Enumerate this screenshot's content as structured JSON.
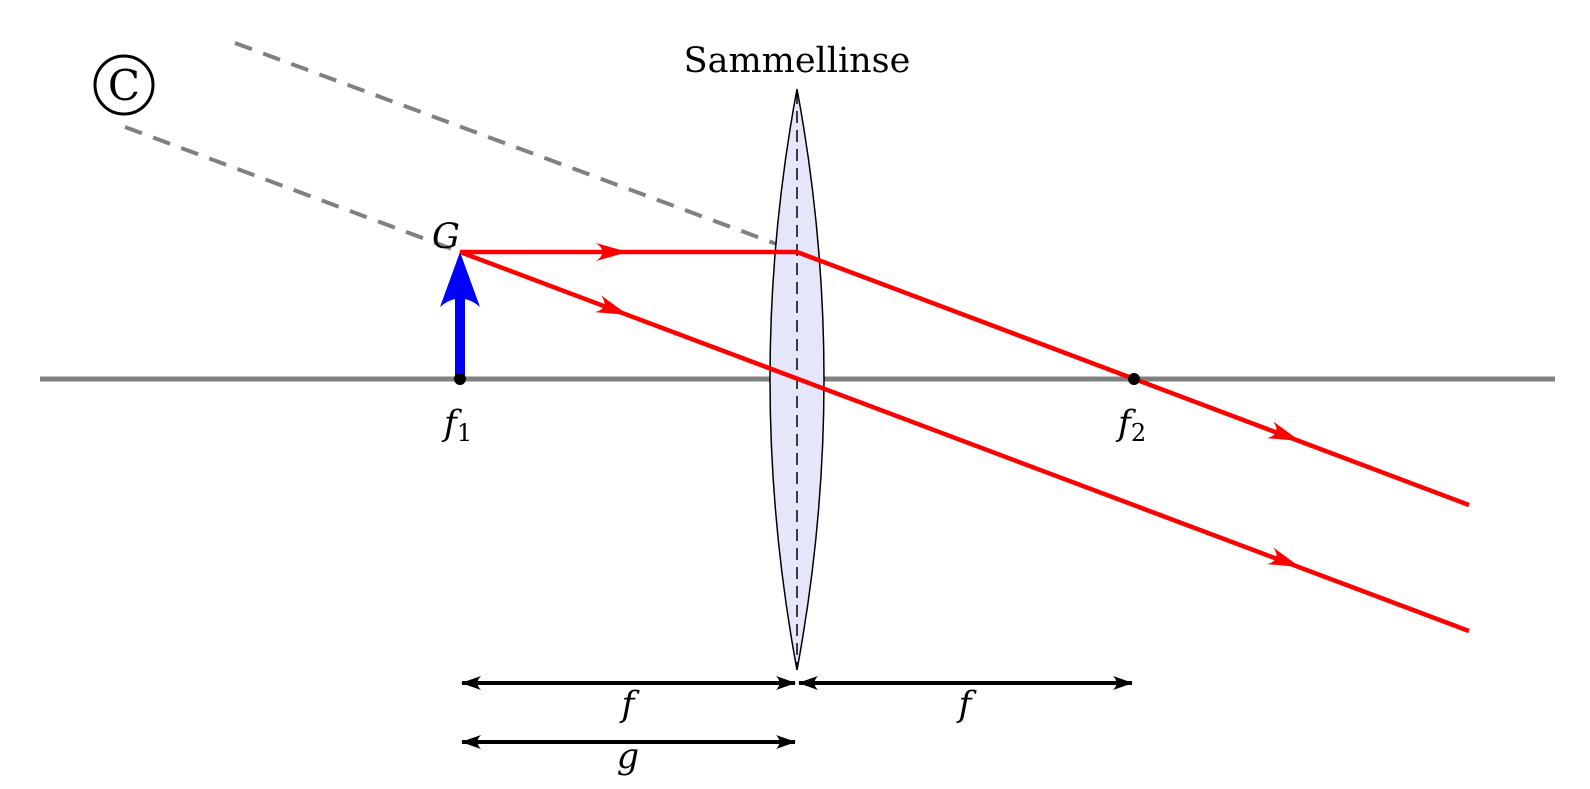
{
  "labels": {
    "lens": "Sammellinse",
    "object": "G",
    "focus_left": "f",
    "focus_left_sub": "1",
    "focus_right": "f",
    "focus_right_sub": "2",
    "dim_f_left": "f",
    "dim_f_right": "f",
    "dim_g": "g",
    "label_c": "C"
  },
  "colors": {
    "rays": "#ff0000",
    "object_arrow": "#0000ff",
    "axis": "#808080",
    "construction_lines": "#808080",
    "lens_fill": "#e6e6fa",
    "dimensions": "#000000"
  }
}
